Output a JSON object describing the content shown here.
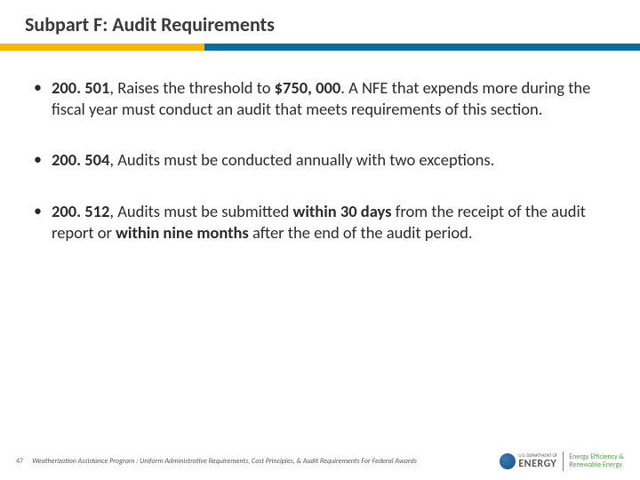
{
  "header": {
    "title": "Subpart F: Audit Requirements"
  },
  "divider": {
    "yellow_color": "#f8b800",
    "blue_color": "#0b6aa2"
  },
  "bullets": [
    {
      "ref": "200. 501",
      "text_before": ", Raises the threshold to ",
      "bold_amt": "$750, 000",
      "text_after": ". A NFE that expends more during the fiscal year must conduct an audit that meets requirements of this section."
    },
    {
      "ref": "200. 504",
      "text_plain": ", Audits must be conducted annually with two exceptions."
    },
    {
      "ref": "200. 512",
      "text_a": ", Audits must be submitted ",
      "bold_b": "within 30 days",
      "text_c": " from the receipt of the audit report or ",
      "bold_d": "within nine months",
      "text_e": " after the end of the audit period."
    }
  ],
  "footer": {
    "page_number": "47",
    "caption": "Weatherization Assistance Program : Uniform Administrative Requirements, Cost Principles, & Audit Requirements For Federal Awards",
    "doe_small": "U.S. DEPARTMENT OF",
    "doe_main": "ENERGY",
    "eere_line1": "Energy Efficiency &",
    "eere_line2": "Renewable Energy"
  }
}
